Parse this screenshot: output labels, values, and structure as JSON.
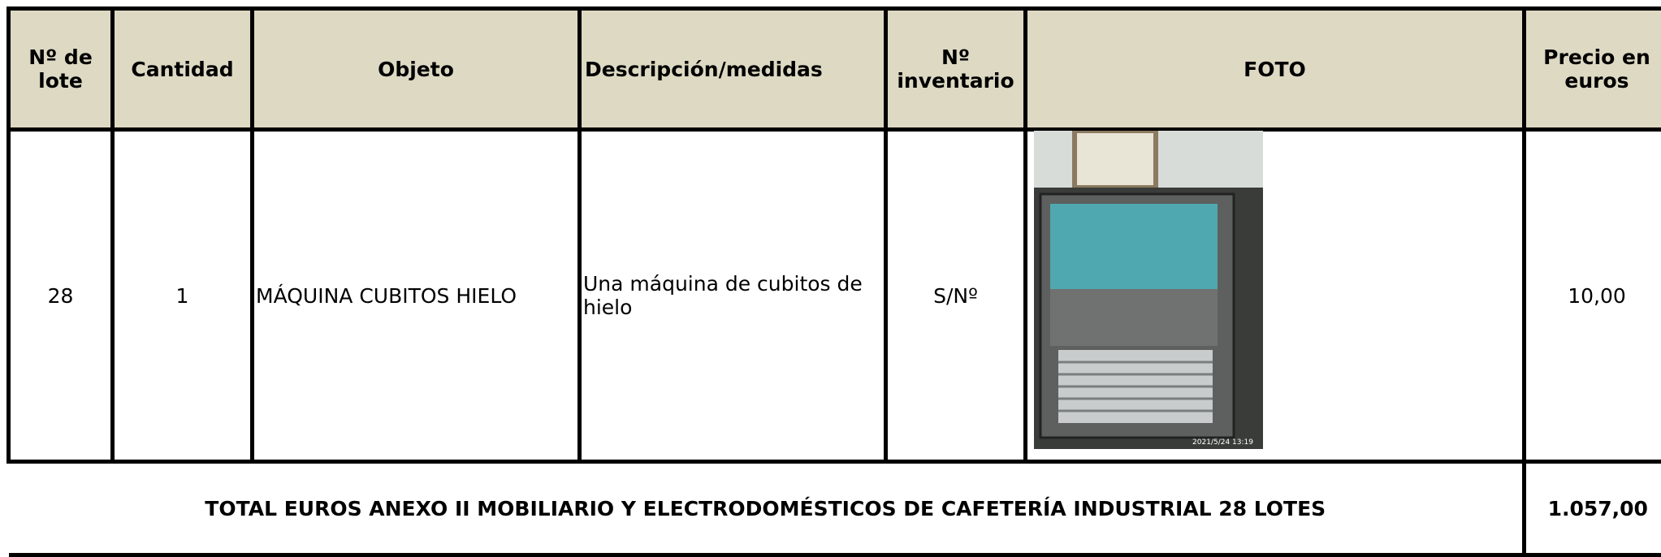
{
  "table": {
    "headers": [
      "Nº de lote",
      "Cantidad",
      "Objeto",
      "Descripción/medidas",
      "Nº inventario",
      "FOTO",
      "Precio en euros"
    ],
    "rows": [
      [
        "28",
        "1",
        "MÁQUINA CUBITOS HIELO",
        "Una máquina de cubitos  de hielo",
        "S/Nº",
        "10,00"
      ]
    ],
    "photo_timestamp": "2021/5/24 13:19",
    "total_label": "TOTAL EUROS ANEXO II MOBILIARIO Y ELECTRODOMÉSTICOS  DE CAFETERÍA INDUSTRIAL 28 LOTES",
    "total_value": "1.057,00"
  }
}
